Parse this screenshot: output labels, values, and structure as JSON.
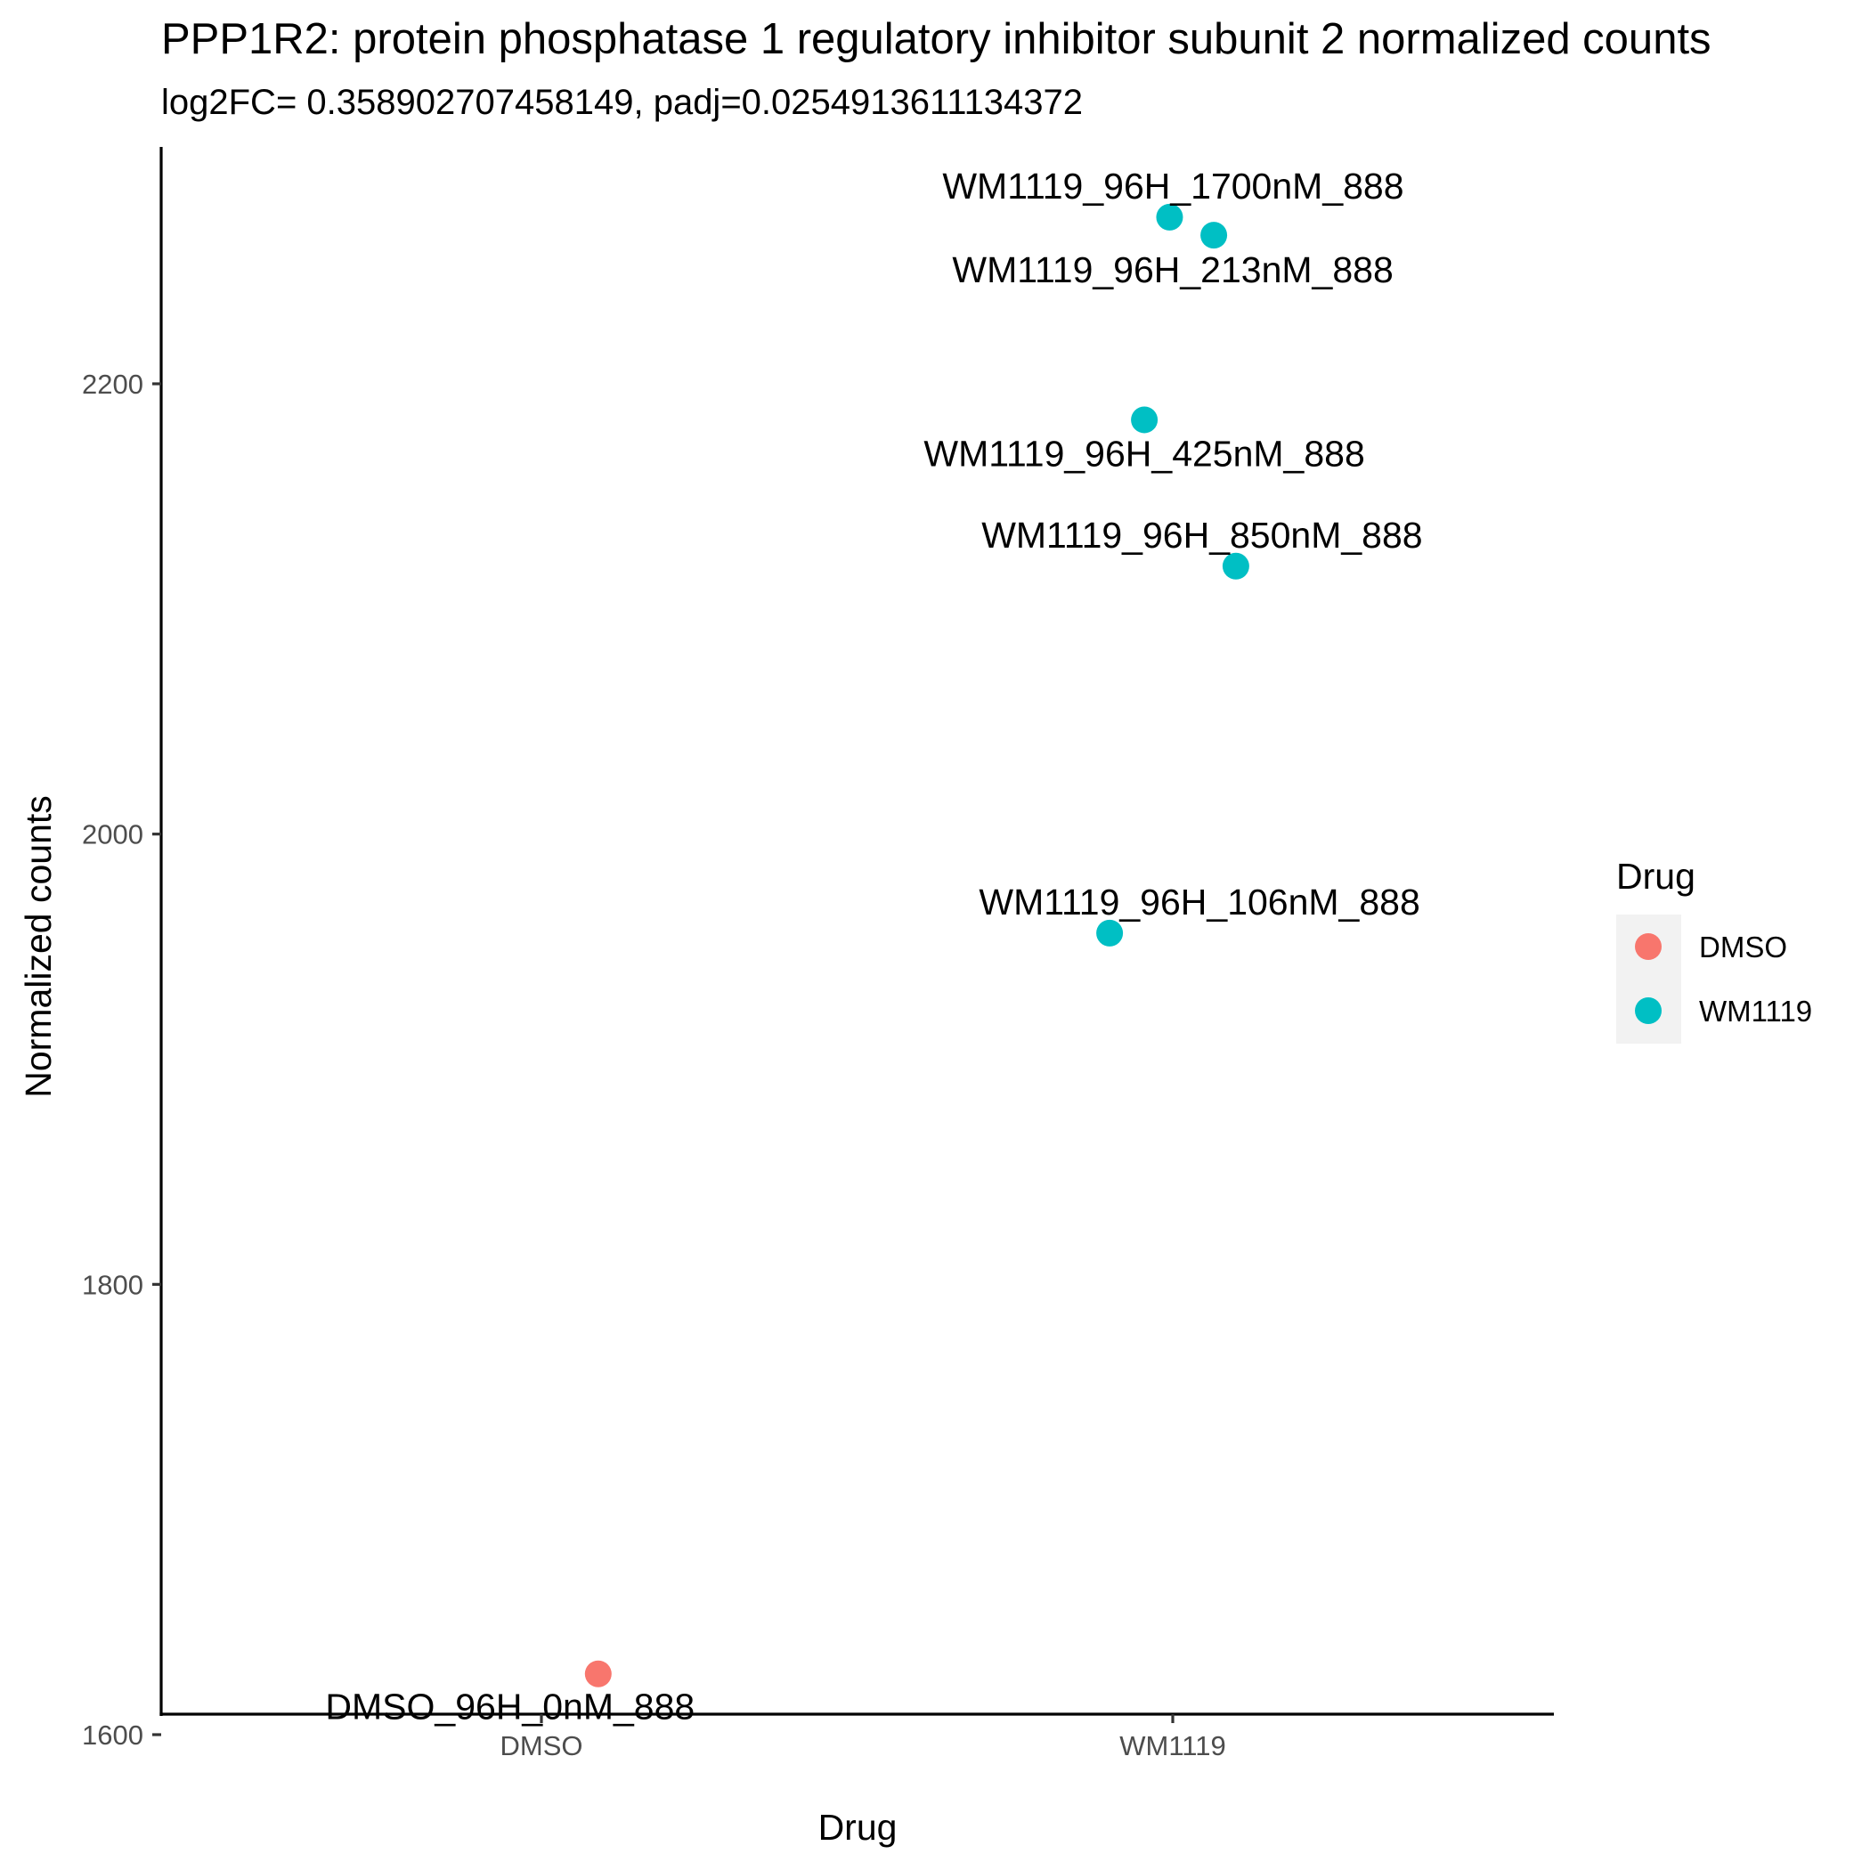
{
  "chart_data": {
    "type": "scatter",
    "title": "PPP1R2: protein phosphatase 1 regulatory inhibitor subunit 2 normalized counts",
    "subtitle": "log2FC= 0.358902707458149, padj=0.0254913611134372",
    "xlabel": "Drug",
    "ylabel": "Normalized counts",
    "categories": [
      "DMSO",
      "WM1119"
    ],
    "ylim": [
      1590,
      2330
    ],
    "yticks": [
      1600,
      1800,
      2000,
      2200
    ],
    "grid": false,
    "legend": {
      "title": "Drug",
      "position": "right",
      "items": [
        {
          "label": "DMSO",
          "color": "#F8766D"
        },
        {
          "label": "WM1119",
          "color": "#00BFC4"
        }
      ]
    },
    "series": [
      {
        "name": "DMSO",
        "color": "#F8766D",
        "points": [
          {
            "category": "DMSO",
            "jitter": 0.09,
            "y": 1627,
            "label": "DMSO_96H_0nM_888"
          }
        ]
      },
      {
        "name": "WM1119",
        "color": "#00BFC4",
        "points": [
          {
            "category": "WM1119",
            "jitter": -0.005,
            "y": 2274,
            "label": "WM1119_96H_1700nM_888"
          },
          {
            "category": "WM1119",
            "jitter": 0.065,
            "y": 2266,
            "label": "WM1119_96H_213nM_888"
          },
          {
            "category": "WM1119",
            "jitter": -0.045,
            "y": 2184,
            "label": "WM1119_96H_425nM_888"
          },
          {
            "category": "WM1119",
            "jitter": 0.1,
            "y": 2119,
            "label": "WM1119_96H_850nM_888"
          },
          {
            "category": "WM1119",
            "jitter": -0.1,
            "y": 1956,
            "label": "WM1119_96H_106nM_888"
          }
        ]
      }
    ]
  }
}
